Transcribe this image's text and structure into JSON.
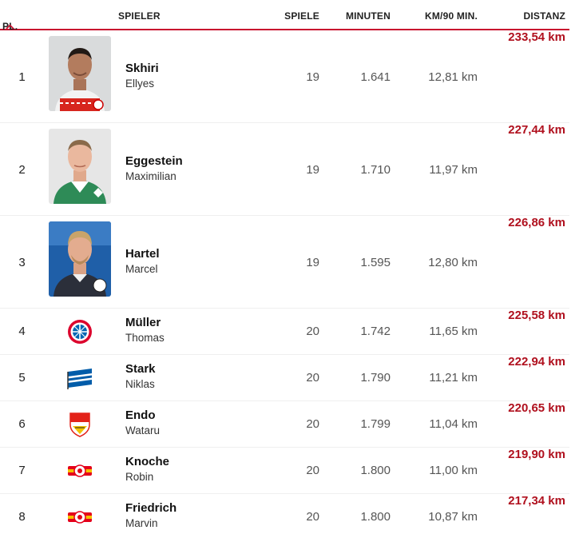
{
  "header": {
    "rank": "PL.",
    "player": "SPIELER",
    "games": "SPIELE",
    "minutes": "MINUTEN",
    "km90": "KM/90 MIN.",
    "distance": "DISTANZ"
  },
  "colors": {
    "accent": "#c8102e",
    "distance_text": "#b0101e"
  },
  "rows": [
    {
      "rank": "1",
      "last": "Skhiri",
      "first": "Ellyes",
      "games": "19",
      "minutes": "1.641",
      "km90": "12,81 km",
      "distance": "233,54 km",
      "media": "player-photo",
      "club_icon": "koeln-crest"
    },
    {
      "rank": "2",
      "last": "Eggestein",
      "first": "Maximilian",
      "games": "19",
      "minutes": "1.710",
      "km90": "11,97 km",
      "distance": "227,44 km",
      "media": "player-photo",
      "club_icon": "werder-crest"
    },
    {
      "rank": "3",
      "last": "Hartel",
      "first": "Marcel",
      "games": "19",
      "minutes": "1.595",
      "km90": "12,80 km",
      "distance": "226,86 km",
      "media": "player-photo",
      "club_icon": "bielefeld-crest"
    },
    {
      "rank": "4",
      "last": "Müller",
      "first": "Thomas",
      "games": "20",
      "minutes": "1.742",
      "km90": "11,65 km",
      "distance": "225,58 km",
      "media": "club-logo",
      "club_icon": "bayern-crest"
    },
    {
      "rank": "5",
      "last": "Stark",
      "first": "Niklas",
      "games": "20",
      "minutes": "1.790",
      "km90": "11,21 km",
      "distance": "222,94 km",
      "media": "club-logo",
      "club_icon": "hertha-crest"
    },
    {
      "rank": "6",
      "last": "Endo",
      "first": "Wataru",
      "games": "20",
      "minutes": "1.799",
      "km90": "11,04 km",
      "distance": "220,65 km",
      "media": "club-logo",
      "club_icon": "vfb-crest"
    },
    {
      "rank": "7",
      "last": "Knoche",
      "first": "Robin",
      "games": "20",
      "minutes": "1.800",
      "km90": "11,00 km",
      "distance": "219,90 km",
      "media": "club-logo",
      "club_icon": "union-crest"
    },
    {
      "rank": "8",
      "last": "Friedrich",
      "first": "Marvin",
      "games": "20",
      "minutes": "1.800",
      "km90": "10,87 km",
      "distance": "217,34 km",
      "media": "club-logo",
      "club_icon": "union-crest"
    }
  ]
}
